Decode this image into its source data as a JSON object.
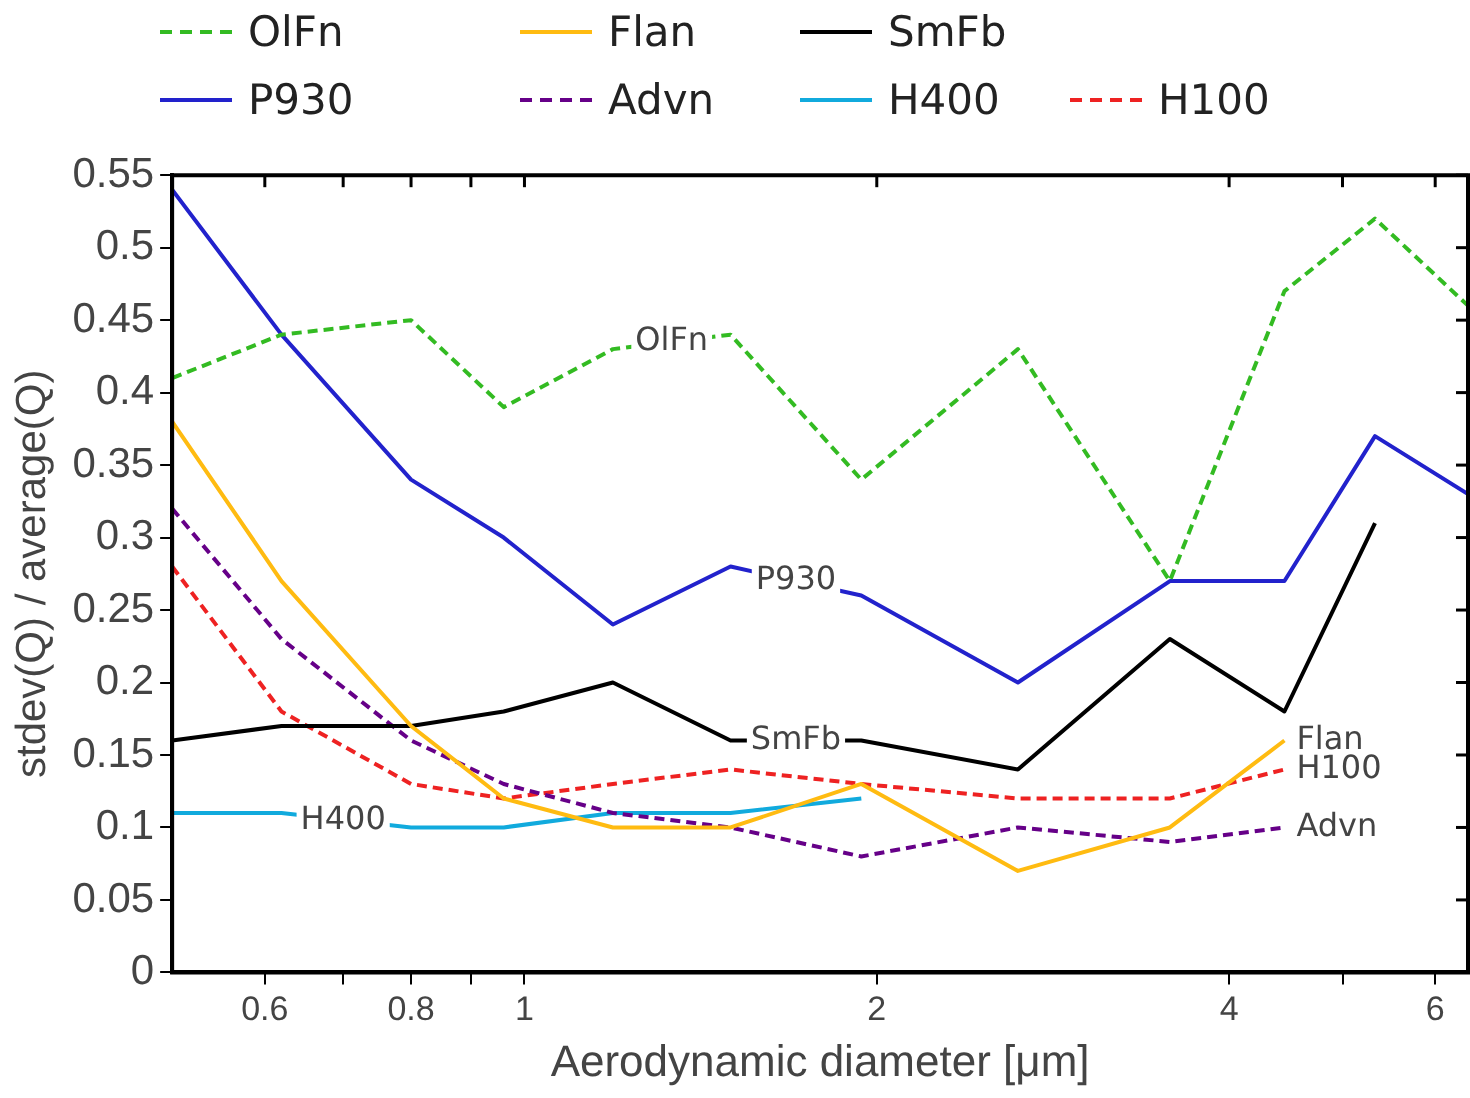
{
  "chart_data": {
    "type": "line",
    "xlabel": "Aerodynamic diameter [μm]",
    "ylabel": "stdev(Q) / average(Q)",
    "x": [
      0.5,
      0.62,
      0.8,
      0.96,
      1.19,
      1.5,
      1.94,
      2.64,
      3.56,
      4.46,
      5.33,
      6.4
    ],
    "series": [
      {
        "name": "OlFn",
        "color": "#33bb22",
        "line_style": "dashed",
        "values": [
          0.41,
          0.44,
          0.45,
          0.39,
          0.43,
          0.44,
          0.34,
          0.43,
          0.27,
          0.47,
          0.52,
          0.46
        ]
      },
      {
        "name": "Flan",
        "color": "#ffbb11",
        "line_style": "solid",
        "values": [
          0.38,
          0.27,
          0.17,
          0.12,
          0.1,
          0.1,
          0.13,
          0.07,
          0.1,
          0.16,
          null,
          null
        ]
      },
      {
        "name": "SmFb",
        "color": "#000000",
        "line_style": "solid",
        "values": [
          0.16,
          0.17,
          0.17,
          0.18,
          0.2,
          0.16,
          0.16,
          0.14,
          0.23,
          0.18,
          0.31,
          null
        ]
      },
      {
        "name": "P930",
        "color": "#2222cc",
        "line_style": "solid",
        "values": [
          0.54,
          0.44,
          0.34,
          0.3,
          0.24,
          0.28,
          0.26,
          0.2,
          0.27,
          0.27,
          0.37,
          0.33
        ]
      },
      {
        "name": "Advn",
        "color": "#660088",
        "line_style": "dashed",
        "values": [
          0.32,
          0.23,
          0.16,
          0.13,
          0.11,
          0.1,
          0.08,
          0.1,
          0.09,
          0.1,
          null,
          null
        ]
      },
      {
        "name": "H400",
        "color": "#11aadd",
        "line_style": "solid",
        "values": [
          0.11,
          0.11,
          0.1,
          0.1,
          0.11,
          0.11,
          0.12,
          null,
          null,
          null,
          null,
          null
        ]
      },
      {
        "name": "H100",
        "color": "#ee2222",
        "line_style": "dashed",
        "values": [
          0.28,
          0.18,
          0.13,
          0.12,
          0.13,
          0.14,
          0.13,
          0.12,
          0.12,
          0.14,
          null,
          null
        ]
      }
    ],
    "annotations": [
      {
        "text": "OlFn",
        "x": 1.336,
        "y": 0.435
      },
      {
        "text": "P930",
        "x": 1.706,
        "y": 0.27
      },
      {
        "text": "SmFb",
        "x": 1.706,
        "y": 0.16
      },
      {
        "text": "H400",
        "x": 0.7,
        "y": 0.105
      },
      {
        "text": "Flan",
        "x": 4.46,
        "y": 0.16
      },
      {
        "text": "H100",
        "x": 4.46,
        "y": 0.14
      },
      {
        "text": "Advn",
        "x": 4.46,
        "y": 0.1
      }
    ],
    "log": "x",
    "xlim": [
      0.5,
      6.4
    ],
    "xticks": [
      0.6,
      {
        "value": 0.7,
        "label": null
      },
      0.8,
      {
        "value": 0.9,
        "label": null
      },
      1,
      2,
      4,
      {
        "value": 5,
        "label": null
      },
      6
    ],
    "ylim": [
      0,
      0.55
    ],
    "yticks": [
      0,
      0.05,
      0.1,
      0.15,
      0.2,
      0.25,
      0.3,
      0.35,
      0.4,
      0.45,
      0.5,
      0.55
    ],
    "grid": false,
    "legend": "top",
    "marker": "none"
  }
}
